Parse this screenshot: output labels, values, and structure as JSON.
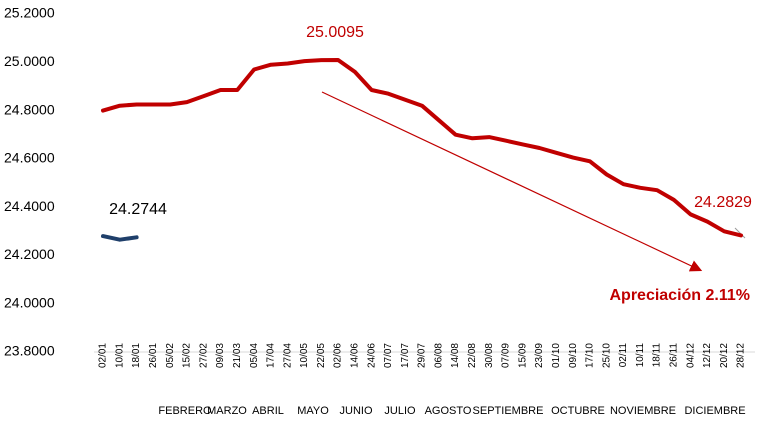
{
  "chart_data": {
    "type": "line",
    "categories": [
      "02/01",
      "10/01",
      "18/01",
      "26/01",
      "05/02",
      "15/02",
      "27/02",
      "09/03",
      "21/03",
      "05/04",
      "17/04",
      "27/04",
      "10/05",
      "22/05",
      "02/06",
      "14/06",
      "24/06",
      "07/07",
      "17/07",
      "29/07",
      "06/08",
      "14/08",
      "22/08",
      "30/08",
      "07/09",
      "15/09",
      "23/09",
      "01/10",
      "09/10",
      "17/10",
      "25/10",
      "02/11",
      "10/11",
      "18/11",
      "26/11",
      "04/12",
      "12/12",
      "20/12",
      "28/12"
    ],
    "months": [
      "FEBRERO",
      "MARZO",
      "ABRIL",
      "MAYO",
      "JUNIO",
      "JULIO",
      "AGOSTO",
      "SEPTIEMBRE",
      "OCTUBRE",
      "NOVIEMBRE",
      "DICIEMBRE"
    ],
    "series": [
      {
        "color": "#1f3f6a",
        "values": [
          24.28,
          24.265,
          24.275,
          null,
          null,
          null,
          null,
          null,
          null,
          null,
          null,
          null,
          null,
          null,
          null,
          null,
          null,
          null,
          null,
          null,
          null,
          null,
          null,
          null,
          null,
          null,
          null,
          null,
          null,
          null,
          null,
          null,
          null,
          null,
          null,
          null,
          null,
          null,
          null
        ]
      },
      {
        "color": "#c00000",
        "values": [
          24.8,
          24.82,
          24.825,
          24.825,
          24.825,
          24.835,
          24.86,
          24.885,
          24.885,
          24.97,
          24.99,
          24.995,
          25.005,
          25.009,
          25.0095,
          24.96,
          24.885,
          24.87,
          24.845,
          24.82,
          24.76,
          24.7,
          24.685,
          24.69,
          24.675,
          24.66,
          24.645,
          24.625,
          24.605,
          24.59,
          24.535,
          24.495,
          24.48,
          24.47,
          24.43,
          24.37,
          24.34,
          24.3,
          24.2829
        ]
      }
    ],
    "ylim": [
      23.8,
      25.2
    ],
    "yticks": [
      {
        "value": 23.8,
        "label": "23.8000"
      },
      {
        "value": 24.0,
        "label": "24.0000"
      },
      {
        "value": 24.2,
        "label": "24.2000"
      },
      {
        "value": 24.4,
        "label": "24.4000"
      },
      {
        "value": 24.6,
        "label": "24.6000"
      },
      {
        "value": 24.8,
        "label": "24.8000"
      },
      {
        "value": 25.0,
        "label": "25.0000"
      },
      {
        "value": 25.2,
        "label": "25.2000"
      }
    ],
    "annotations": [
      {
        "text": "25.0095",
        "color": "#c00000"
      },
      {
        "text": "24.2744",
        "color": "#000000"
      },
      {
        "text": "24.2829",
        "color": "#c00000"
      },
      {
        "text": "Apreciación 2.11%",
        "color": "#c00000"
      }
    ]
  }
}
